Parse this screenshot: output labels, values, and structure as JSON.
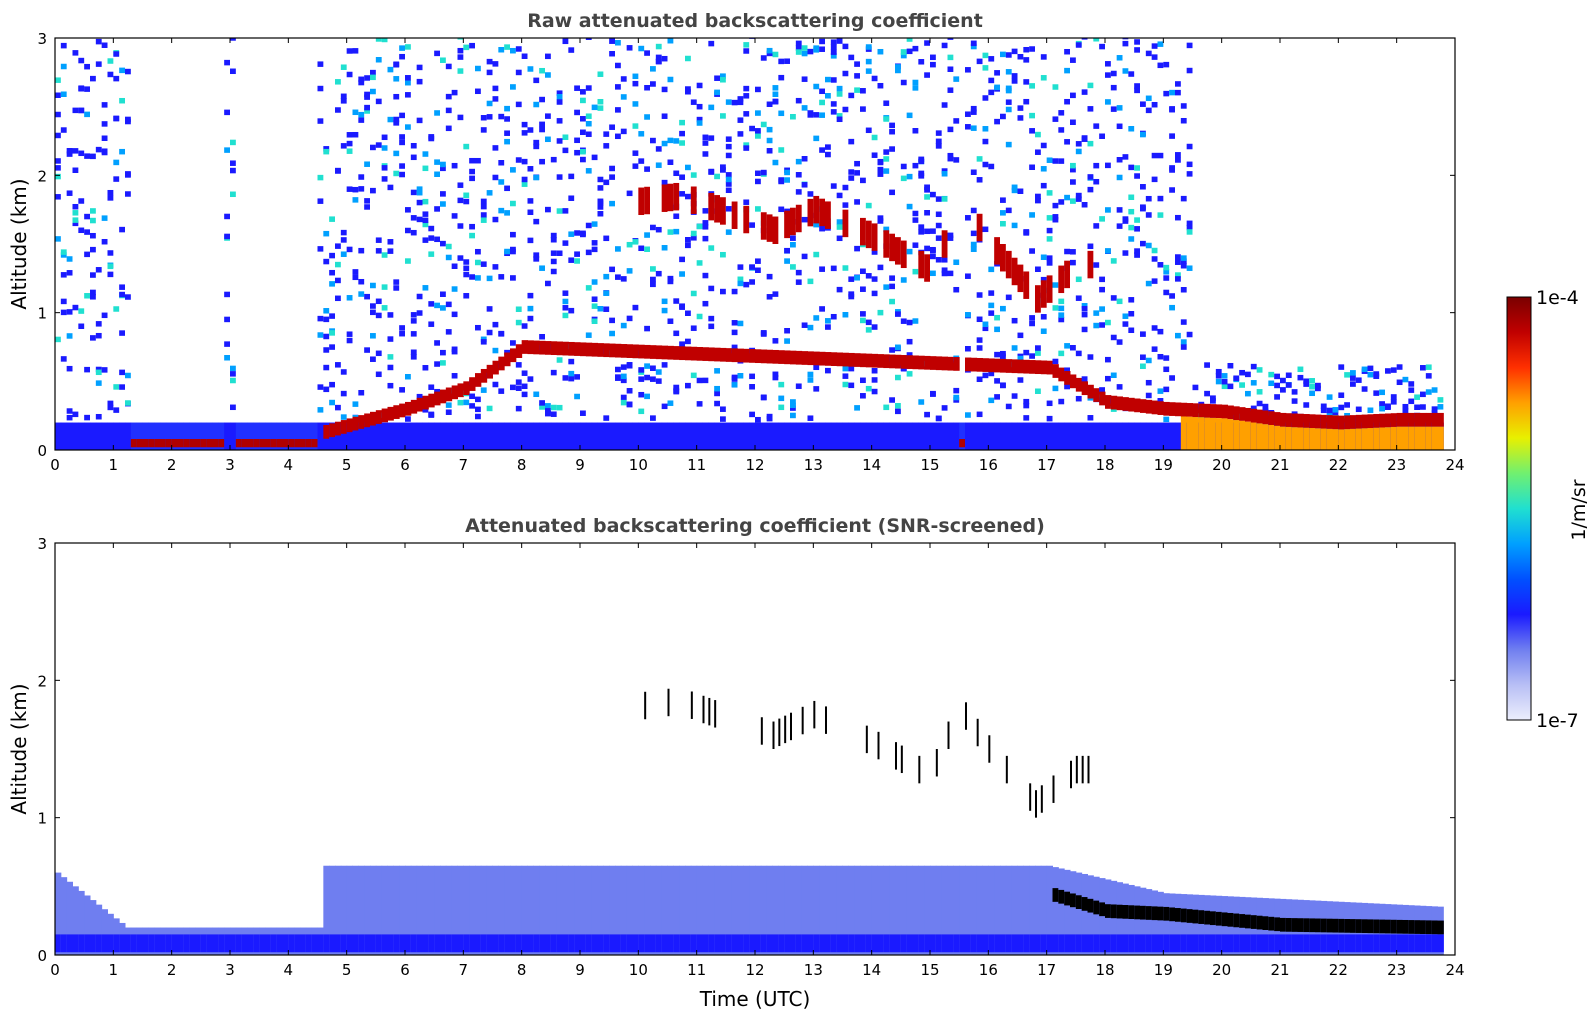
{
  "chart_data": [
    {
      "type": "heatmap",
      "title": "Raw attenuated backscattering coefficient",
      "xlabel": "",
      "ylabel": "Altitude (km)",
      "xlim": [
        0,
        24
      ],
      "ylim": [
        0,
        3
      ],
      "xticks": [
        "0",
        "1",
        "2",
        "3",
        "4",
        "5",
        "6",
        "7",
        "8",
        "9",
        "10",
        "11",
        "12",
        "13",
        "14",
        "15",
        "16",
        "17",
        "18",
        "19",
        "20",
        "21",
        "22",
        "23",
        "24"
      ],
      "yticks": [
        "0",
        "1",
        "2",
        "3"
      ],
      "color_scale": "log",
      "features": {
        "boundary_layer_top_km": [
          [
            0,
            0.1
          ],
          [
            1.2,
            0.08
          ],
          [
            4.5,
            0.12
          ],
          [
            6,
            0.3
          ],
          [
            7,
            0.45
          ],
          [
            8,
            0.75
          ],
          [
            17,
            0.6
          ],
          [
            18,
            0.35
          ],
          [
            19,
            0.3
          ],
          [
            20,
            0.28
          ],
          [
            21,
            0.22
          ],
          [
            22,
            0.2
          ],
          [
            23,
            0.22
          ],
          [
            23.8,
            0.22
          ]
        ],
        "cloud_layer_km": [
          [
            9.8,
            1.8
          ],
          [
            10.7,
            1.85
          ],
          [
            12.3,
            1.6
          ],
          [
            13,
            1.75
          ],
          [
            14,
            1.55
          ],
          [
            15,
            1.3
          ],
          [
            15.5,
            1.8
          ],
          [
            16,
            1.5
          ],
          [
            16.8,
            1.1
          ],
          [
            17.5,
            1.35
          ]
        ],
        "data_gaps_utc": [
          [
            1.25,
            2.9
          ],
          [
            3.05,
            4.5
          ],
          [
            15.45,
            15.55
          ]
        ]
      }
    },
    {
      "type": "heatmap",
      "title": "Attenuated backscattering coefficient (SNR-screened)",
      "xlabel": "Time (UTC)",
      "ylabel": "Altitude (km)",
      "xlim": [
        0,
        24
      ],
      "ylim": [
        0,
        3
      ],
      "xticks": [
        "0",
        "1",
        "2",
        "3",
        "4",
        "5",
        "6",
        "7",
        "8",
        "9",
        "10",
        "11",
        "12",
        "13",
        "14",
        "15",
        "16",
        "17",
        "18",
        "19",
        "20",
        "21",
        "22",
        "23",
        "24"
      ],
      "yticks": [
        "0",
        "1",
        "2",
        "3"
      ],
      "color_scale": "log",
      "features": {
        "screened_low_signal_top_km": [
          [
            0,
            0.6
          ],
          [
            1.2,
            0.2
          ],
          [
            4.5,
            0.2
          ],
          [
            4.6,
            0.65
          ],
          [
            17,
            0.65
          ],
          [
            19,
            0.45
          ],
          [
            23.8,
            0.35
          ]
        ]
      }
    }
  ],
  "colorbar": {
    "label": "1/m/sr",
    "max_label": "1e-4",
    "min_label": "1e-7",
    "colors": [
      "#eceefc",
      "#b8bff5",
      "#6f7ef0",
      "#1a1aff",
      "#0050ff",
      "#00a0ff",
      "#20e0d0",
      "#70f070",
      "#e8f000",
      "#ffa000",
      "#ff3000",
      "#c00000",
      "#7a0000"
    ]
  }
}
